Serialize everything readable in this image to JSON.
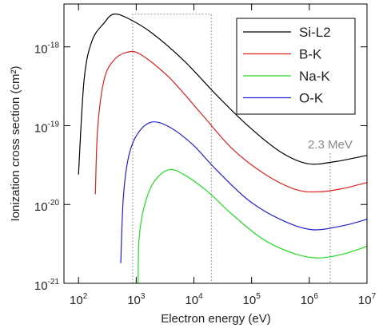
{
  "chart_data": {
    "type": "line",
    "xlabel": "Electron energy (eV)",
    "ylabel": "Ionization cross section (cm²)",
    "xscale": "log",
    "yscale": "log",
    "xlim": [
      56,
      10000000
    ],
    "ylim": [
      1e-21,
      3.5e-18
    ],
    "xticks": [
      {
        "value": 100,
        "label": "10^2"
      },
      {
        "value": 1000,
        "label": "10^3"
      },
      {
        "value": 10000,
        "label": "10^4"
      },
      {
        "value": 100000,
        "label": "10^5"
      },
      {
        "value": 1000000,
        "label": "10^6"
      },
      {
        "value": 10000000,
        "label": "10^7"
      }
    ],
    "yticks": [
      {
        "value": 1e-21,
        "label": "10^-21"
      },
      {
        "value": 1e-20,
        "label": "10^-20"
      },
      {
        "value": 1e-19,
        "label": "10^-19"
      },
      {
        "value": 1e-18,
        "label": "10^-18"
      }
    ],
    "legend": "upper right",
    "box": {
      "x": [
        870,
        20000
      ],
      "top": 2.6e-18
    },
    "annotations": [
      {
        "text": "2.3 MeV",
        "x": 2300000
      }
    ],
    "series": [
      {
        "name": "Si-L2",
        "color": "#000000",
        "x": [
          100,
          125,
          172,
          277,
          405,
          720,
          1870,
          6700,
          24000,
          86000,
          310000,
          930000,
          2800000,
          10000000
        ],
        "values": [
          2.4e-20,
          3.8e-19,
          1.2e-18,
          2e-18,
          2.6e-18,
          2.3e-18,
          1.5e-18,
          6.7e-19,
          2.5e-19,
          1e-19,
          4.7e-20,
          3.3e-20,
          3.5e-20,
          4.2e-20
        ]
      },
      {
        "name": "B-K",
        "color": "#e02020",
        "x": [
          196,
          215,
          277,
          405,
          676,
          1160,
          3600,
          12600,
          45000,
          160000,
          580000,
          1500000,
          3900000,
          10000000
        ],
        "values": [
          1.35e-20,
          9.3e-20,
          3.8e-19,
          6.7e-19,
          8.5e-19,
          8.1e-19,
          4.2e-19,
          1.5e-19,
          5.2e-20,
          2.5e-20,
          1.55e-20,
          1.45e-20,
          1.6e-20,
          1.9e-20
        ]
      },
      {
        "name": "Na-K",
        "color": "#22dd22",
        "x": [
          1080,
          1120,
          1360,
          2000,
          3600,
          6700,
          17500,
          45000,
          160000,
          580000,
          1500000,
          3900000,
          10000000
        ],
        "values": [
          1e-21,
          3.6e-21,
          9.1e-21,
          1.9e-20,
          2.75e-20,
          2.4e-20,
          1.45e-20,
          7.6e-21,
          3.6e-21,
          2.35e-21,
          2.1e-21,
          2.35e-21,
          2.95e-21
        ]
      },
      {
        "name": "O-K",
        "color": "#2020d0",
        "x": [
          540,
          595,
          720,
          1000,
          1760,
          3600,
          9200,
          24000,
          86000,
          310000,
          1100000,
          3900000,
          10000000
        ],
        "values": [
          1.8e-21,
          1.15e-20,
          3.7e-20,
          7.4e-20,
          1.1e-19,
          9.8e-20,
          5.9e-20,
          2.8e-20,
          1.15e-20,
          6.5e-21,
          4.8e-21,
          5.4e-21,
          6.5e-21
        ]
      }
    ]
  }
}
